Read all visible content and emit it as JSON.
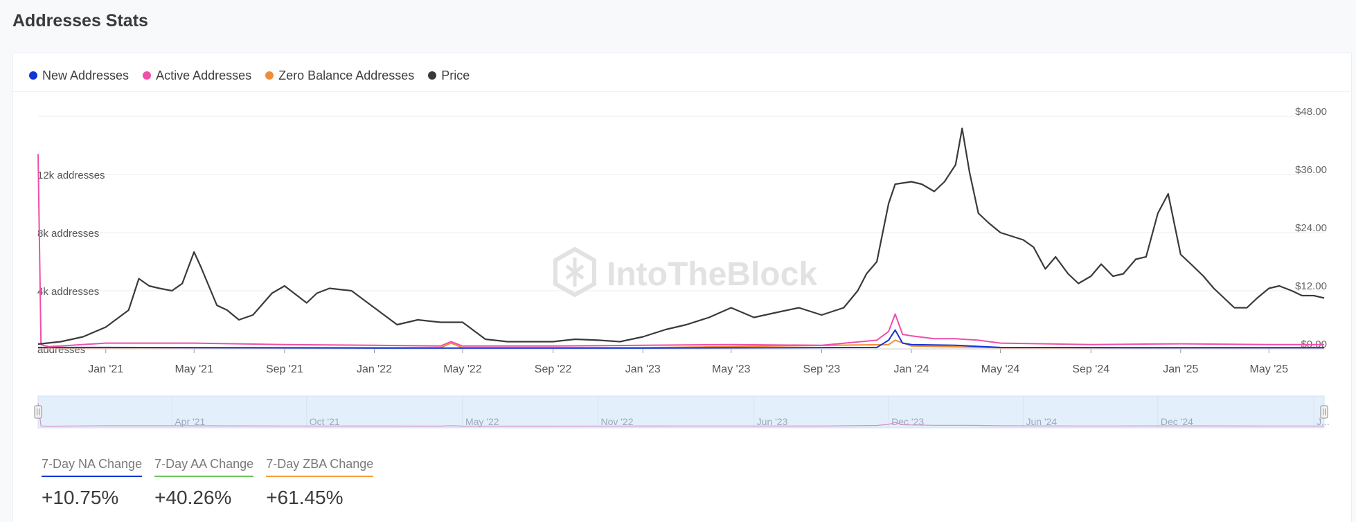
{
  "title": "Addresses Stats",
  "legend": [
    {
      "name": "New Addresses",
      "color": "#1134d8"
    },
    {
      "name": "Active Addresses",
      "color": "#ee4fa8"
    },
    {
      "name": "Zero Balance Addresses",
      "color": "#f28c38"
    },
    {
      "name": "Price",
      "color": "#3a3a3a"
    }
  ],
  "watermark": "IntoTheBlock",
  "stats": [
    {
      "label": "7-Day NA Change",
      "value": "+10.75%",
      "color": "#1134d8"
    },
    {
      "label": "7-Day AA Change",
      "value": "+40.26%",
      "color": "#6cc25b"
    },
    {
      "label": "7-Day ZBA Change",
      "value": "+61.45%",
      "color": "#f2a13a"
    }
  ],
  "chart_data": {
    "type": "line",
    "x_range": [
      "2020-10-01",
      "2025-07-15"
    ],
    "x_ticks": [
      "Jan '21",
      "May '21",
      "Sep '21",
      "Jan '22",
      "May '22",
      "Sep '22",
      "Jan '23",
      "May '23",
      "Sep '23",
      "Jan '24",
      "May '24",
      "Sep '24",
      "Jan '25",
      "May '25"
    ],
    "y_left": {
      "ticks": [
        "12k addresses",
        "8k addresses",
        "4k addresses",
        "addresses"
      ],
      "range": [
        0,
        16000
      ]
    },
    "y_right": {
      "ticks": [
        "$48.00",
        "$36.00",
        "$24.00",
        "$12.00",
        "$0.00"
      ],
      "range": [
        0,
        48
      ]
    },
    "navigator_labels": [
      "Apr '21",
      "Oct '21",
      "May '22",
      "Nov '22",
      "Jun '23",
      "Dec '23",
      "Jun '24",
      "Dec '24",
      "J..."
    ],
    "series": [
      {
        "name": "Price",
        "axis": "right",
        "color": "#3a3a3a",
        "x": [
          "2020-10-01",
          "2020-11-01",
          "2020-12-01",
          "2021-01-01",
          "2021-02-01",
          "2021-02-15",
          "2021-03-01",
          "2021-03-15",
          "2021-04-01",
          "2021-04-15",
          "2021-05-01",
          "2021-05-10",
          "2021-06-01",
          "2021-06-15",
          "2021-07-01",
          "2021-07-20",
          "2021-08-15",
          "2021-09-01",
          "2021-10-01",
          "2021-10-15",
          "2021-11-01",
          "2021-12-01",
          "2022-01-01",
          "2022-02-01",
          "2022-03-01",
          "2022-04-01",
          "2022-05-01",
          "2022-06-01",
          "2022-07-01",
          "2022-08-01",
          "2022-09-01",
          "2022-10-01",
          "2022-11-01",
          "2022-12-01",
          "2023-01-01",
          "2023-02-01",
          "2023-03-01",
          "2023-04-01",
          "2023-05-01",
          "2023-06-01",
          "2023-07-01",
          "2023-08-01",
          "2023-09-01",
          "2023-10-01",
          "2023-10-20",
          "2023-11-01",
          "2023-11-15",
          "2023-12-01",
          "2023-12-10",
          "2024-01-01",
          "2024-01-15",
          "2024-02-01",
          "2024-02-15",
          "2024-03-01",
          "2024-03-10",
          "2024-03-20",
          "2024-04-01",
          "2024-04-15",
          "2024-05-01",
          "2024-06-01",
          "2024-06-15",
          "2024-07-01",
          "2024-07-15",
          "2024-08-01",
          "2024-08-15",
          "2024-09-01",
          "2024-09-15",
          "2024-10-01",
          "2024-10-15",
          "2024-11-01",
          "2024-11-15",
          "2024-12-01",
          "2024-12-15",
          "2025-01-01",
          "2025-01-15",
          "2025-02-01",
          "2025-02-15",
          "2025-03-01",
          "2025-03-15",
          "2025-04-01",
          "2025-04-15",
          "2025-05-01",
          "2025-05-15",
          "2025-06-01",
          "2025-06-15",
          "2025-07-01",
          "2025-07-15"
        ],
        "values": [
          1.0,
          1.5,
          2.5,
          4.5,
          8.0,
          14.5,
          13.0,
          12.5,
          12.0,
          13.5,
          20.0,
          17.0,
          9.0,
          8.0,
          6.0,
          7.0,
          11.5,
          13.0,
          9.5,
          11.5,
          12.5,
          12.0,
          8.5,
          5.0,
          6.0,
          5.5,
          5.5,
          2.0,
          1.5,
          1.5,
          1.5,
          2.0,
          1.8,
          1.5,
          2.5,
          4.0,
          5.0,
          6.5,
          8.5,
          6.5,
          7.5,
          8.5,
          7.0,
          8.5,
          12.0,
          15.5,
          18.0,
          30.0,
          34.0,
          34.5,
          34.0,
          32.5,
          34.5,
          38.0,
          45.5,
          36.5,
          28.0,
          26.0,
          24.0,
          22.5,
          21.0,
          16.5,
          19.0,
          15.5,
          13.5,
          15.0,
          17.5,
          15.0,
          15.5,
          18.5,
          19.0,
          28.0,
          32.0,
          19.5,
          17.5,
          15.0,
          12.5,
          10.5,
          8.5,
          8.5,
          10.5,
          12.5,
          13.0,
          12.0,
          11.0,
          11.0,
          10.5
        ]
      },
      {
        "name": "Active Addresses",
        "axis": "left",
        "color": "#ee4fa8",
        "x": [
          "2020-10-01",
          "2020-10-05",
          "2020-10-15",
          "2021-01-01",
          "2021-05-01",
          "2021-09-01",
          "2022-01-01",
          "2022-04-01",
          "2022-04-15",
          "2022-05-01",
          "2022-09-01",
          "2023-01-01",
          "2023-05-01",
          "2023-09-01",
          "2023-11-15",
          "2023-12-01",
          "2023-12-10",
          "2023-12-20",
          "2024-01-01",
          "2024-02-01",
          "2024-03-01",
          "2024-04-01",
          "2024-05-01",
          "2024-09-01",
          "2025-01-01",
          "2025-05-01",
          "2025-07-15"
        ],
        "values": [
          13400,
          300,
          150,
          400,
          400,
          300,
          250,
          200,
          500,
          200,
          200,
          250,
          300,
          250,
          600,
          1200,
          2400,
          1000,
          900,
          700,
          700,
          600,
          400,
          300,
          350,
          300,
          300
        ]
      },
      {
        "name": "New Addresses",
        "axis": "left",
        "color": "#1134d8",
        "x": [
          "2020-10-01",
          "2021-01-01",
          "2022-01-01",
          "2023-01-01",
          "2023-11-15",
          "2023-12-01",
          "2023-12-10",
          "2023-12-20",
          "2024-01-01",
          "2024-03-01",
          "2024-05-01",
          "2025-01-01",
          "2025-07-15"
        ],
        "values": [
          100,
          100,
          60,
          60,
          100,
          600,
          1300,
          400,
          300,
          250,
          100,
          80,
          80
        ]
      },
      {
        "name": "Zero Balance Addresses",
        "axis": "left",
        "color": "#f28c38",
        "x": [
          "2020-10-01",
          "2021-01-01",
          "2022-04-01",
          "2022-04-15",
          "2022-05-01",
          "2023-01-01",
          "2023-12-01",
          "2023-12-10",
          "2024-01-01",
          "2024-05-01",
          "2025-07-15"
        ],
        "values": [
          80,
          80,
          80,
          400,
          80,
          80,
          300,
          600,
          200,
          80,
          80
        ]
      }
    ]
  }
}
